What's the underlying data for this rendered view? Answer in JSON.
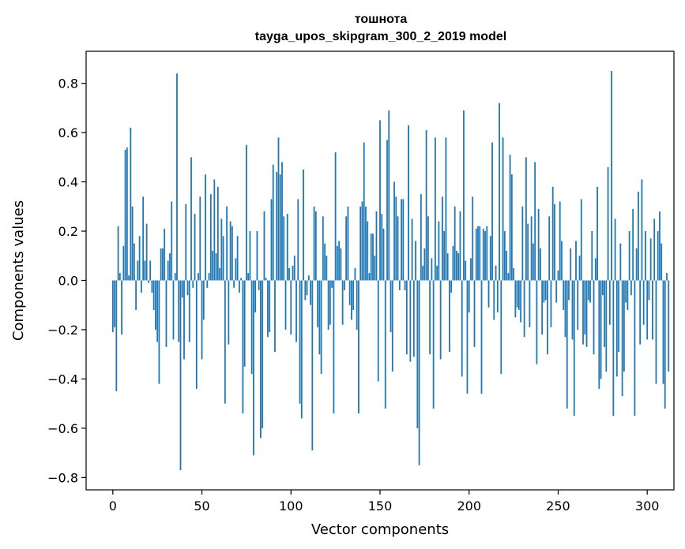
{
  "chart_data": {
    "type": "bar",
    "title": "тошнота",
    "subtitle": "tayga_upos_skipgram_300_2_2019 model",
    "xlabel": "Vector components",
    "ylabel": "Components values",
    "xlim": [
      -15,
      315
    ],
    "ylim": [
      -0.85,
      0.93
    ],
    "xticks": [
      0,
      50,
      100,
      150,
      200,
      250,
      300
    ],
    "xtick_labels": [
      "0",
      "50",
      "100",
      "150",
      "200",
      "250",
      "300"
    ],
    "yticks": [
      -0.8,
      -0.6,
      -0.4,
      -0.2,
      0.0,
      0.2,
      0.4,
      0.6,
      0.8
    ],
    "ytick_labels": [
      "−0.8",
      "−0.6",
      "−0.4",
      "−0.2",
      "0.0",
      "0.2",
      "0.4",
      "0.6",
      "0.8"
    ],
    "grid": false,
    "bar_color": "#1f77b4",
    "values": [
      -0.21,
      -0.19,
      -0.45,
      0.22,
      0.03,
      -0.22,
      0.14,
      0.53,
      0.54,
      0.02,
      0.62,
      0.3,
      0.15,
      -0.12,
      0.08,
      0.18,
      -0.05,
      0.34,
      0.08,
      0.23,
      -0.01,
      0.08,
      -0.05,
      -0.12,
      -0.2,
      -0.25,
      -0.42,
      0.13,
      0.13,
      0.21,
      -0.27,
      0.08,
      0.11,
      0.32,
      -0.24,
      0.03,
      0.84,
      -0.25,
      -0.77,
      -0.07,
      -0.32,
      0.31,
      -0.06,
      -0.25,
      0.5,
      -0.03,
      0.27,
      -0.44,
      0.03,
      0.34,
      -0.32,
      -0.16,
      0.43,
      -0.03,
      0.03,
      0.35,
      0.12,
      0.41,
      0.11,
      0.38,
      0.05,
      0.25,
      0.18,
      -0.5,
      0.3,
      -0.26,
      0.24,
      0.22,
      -0.03,
      0.09,
      0.18,
      -0.05,
      0.01,
      -0.54,
      -0.35,
      0.55,
      0.03,
      0.2,
      -0.38,
      -0.71,
      -0.13,
      0.2,
      -0.04,
      -0.64,
      -0.6,
      0.28,
      0.01,
      -0.23,
      -0.21,
      0.33,
      0.47,
      -0.29,
      0.44,
      0.58,
      0.43,
      0.48,
      0.26,
      -0.2,
      0.27,
      0.05,
      -0.22,
      0.06,
      0.1,
      -0.25,
      0.33,
      -0.5,
      -0.56,
      0.45,
      -0.08,
      -0.06,
      0.02,
      -0.1,
      -0.69,
      0.3,
      0.28,
      -0.19,
      -0.3,
      -0.38,
      0.26,
      0.15,
      0.1,
      -0.2,
      -0.18,
      -0.03,
      -0.54,
      0.52,
      0.14,
      0.16,
      0.13,
      -0.18,
      -0.04,
      0.26,
      0.3,
      -0.1,
      -0.16,
      -0.12,
      0.05,
      -0.2,
      -0.54,
      0.3,
      0.32,
      0.56,
      0.3,
      0.24,
      0.03,
      0.19,
      0.19,
      0.1,
      0.28,
      -0.41,
      0.65,
      0.27,
      0.21,
      -0.52,
      0.57,
      0.69,
      -0.21,
      -0.37,
      0.4,
      0.34,
      0.26,
      -0.04,
      0.33,
      0.33,
      -0.04,
      -0.3,
      0.63,
      -0.33,
      0.25,
      -0.31,
      0.16,
      -0.6,
      -0.75,
      0.35,
      0.06,
      0.13,
      0.61,
      0.26,
      -0.3,
      0.09,
      -0.52,
      0.58,
      0.06,
      0.24,
      -0.32,
      0.34,
      0.2,
      0.58,
      0.11,
      -0.29,
      -0.05,
      0.14,
      0.3,
      0.12,
      0.11,
      0.28,
      -0.39,
      0.69,
      0.08,
      -0.46,
      -0.13,
      0.09,
      0.34,
      -0.27,
      0.21,
      0.22,
      0.22,
      -0.46,
      0.21,
      0.2,
      0.22,
      -0.11,
      0.18,
      0.56,
      -0.16,
      0.06,
      -0.13,
      0.72,
      -0.38,
      0.58,
      0.2,
      0.12,
      0.03,
      0.51,
      0.43,
      0.05,
      -0.15,
      -0.11,
      -0.12,
      -0.17,
      0.3,
      -0.23,
      0.5,
      0.23,
      -0.19,
      0.26,
      0.15,
      0.48,
      -0.34,
      0.29,
      0.13,
      -0.22,
      -0.09,
      -0.08,
      -0.3,
      0.26,
      -0.19,
      0.38,
      0.31,
      -0.09,
      0.04,
      0.32,
      0.16,
      -0.12,
      -0.23,
      -0.52,
      -0.08,
      0.13,
      -0.24,
      -0.55,
      0.16,
      -0.2,
      0.1,
      0.33,
      -0.26,
      -0.22,
      -0.27,
      -0.08,
      -0.09,
      0.2,
      -0.3,
      0.09,
      0.38,
      -0.44,
      -0.4,
      -0.06,
      -0.27,
      -0.37,
      0.46,
      -0.18,
      0.85,
      -0.55,
      0.25,
      -0.39,
      -0.29,
      0.15,
      -0.47,
      -0.37,
      -0.09,
      -0.12,
      0.2,
      -0.06,
      0.29,
      -0.55,
      0.13,
      0.36,
      -0.26,
      0.41,
      -0.18,
      0.2,
      -0.24,
      -0.08,
      0.17,
      -0.24,
      0.25,
      -0.42,
      0.2,
      0.28,
      0.15,
      -0.42,
      -0.52,
      0.03,
      -0.37
    ]
  }
}
